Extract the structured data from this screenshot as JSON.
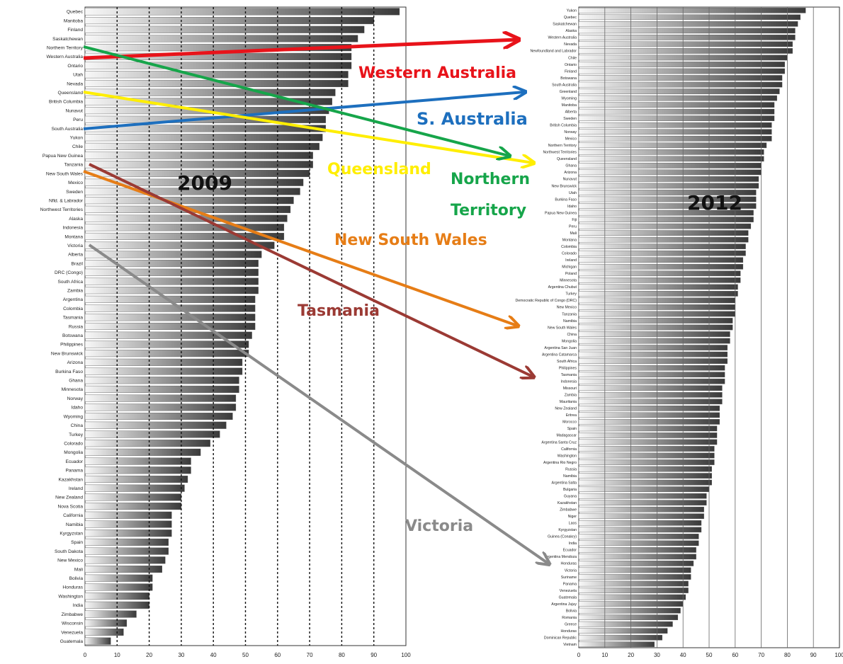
{
  "chart_data": [
    {
      "type": "bar",
      "orientation": "horizontal",
      "year_label": "2009",
      "xlim": [
        0,
        100
      ],
      "x_ticks": [
        0,
        10,
        20,
        30,
        40,
        50,
        60,
        70,
        80,
        90,
        100
      ],
      "grid": "vertical dotted",
      "categories": [
        "Quebec",
        "Manitoba",
        "Finland",
        "Saskatchewan",
        "Northern Territory",
        "Western Australia",
        "Ontario",
        "Utah",
        "Nevada",
        "Queensland",
        "British Columbia",
        "Nunavut",
        "Peru",
        "South Australia",
        "Yukon",
        "Chile",
        "Papua New Guinea",
        "Tanzania",
        "New South Wales",
        "Mexico",
        "Sweden",
        "Nfld. & Labrador",
        "Northwest Territories",
        "Alaska",
        "Indonesia",
        "Montana",
        "Victoria",
        "Alberta",
        "Brazil",
        "DRC (Congo)",
        "South Africa",
        "Zambia",
        "Argentina",
        "Colombia",
        "Tasmania",
        "Russia",
        "Botswana",
        "Philippines",
        "New Brunswick",
        "Arizona",
        "Burkina Faso",
        "Ghana",
        "Minnesota",
        "Norway",
        "Idaho",
        "Wyoming",
        "China",
        "Turkey",
        "Colorado",
        "Mongolia",
        "Ecuador",
        "Panama",
        "Kazakhstan",
        "Ireland",
        "New Zealand",
        "Nova Scotia",
        "California",
        "Namibia",
        "Kyrgyzstan",
        "Spain",
        "South Dakota",
        "New Mexico",
        "Mali",
        "Bolivia",
        "Honduras",
        "Washington",
        "India",
        "Zimbabwe",
        "Wisconsin",
        "Venezuela",
        "Guatemala"
      ],
      "values": [
        98,
        90,
        87,
        85,
        83,
        83,
        83,
        82,
        82,
        78,
        77,
        76,
        75,
        75,
        74,
        73,
        71,
        71,
        70,
        68,
        67,
        65,
        64,
        63,
        62,
        62,
        59,
        55,
        54,
        54,
        54,
        54,
        53,
        53,
        53,
        53,
        52,
        51,
        51,
        49,
        49,
        48,
        48,
        47,
        47,
        46,
        44,
        42,
        39,
        36,
        33,
        33,
        32,
        31,
        30,
        30,
        27,
        27,
        27,
        26,
        26,
        25,
        24,
        21,
        21,
        20,
        20,
        16,
        13,
        12,
        8
      ]
    },
    {
      "type": "bar",
      "orientation": "horizontal",
      "year_label": "2012",
      "xlim": [
        0,
        100
      ],
      "x_ticks": [
        0,
        10,
        20,
        30,
        40,
        50,
        60,
        70,
        80,
        90,
        100
      ],
      "grid": "vertical solid",
      "categories": [
        "Yukon",
        "Quebec",
        "Saskatchewan",
        "Alaska",
        "Western Australia",
        "Nevada",
        "Newfoundland and Labrador",
        "Chile",
        "Ontario",
        "Finland",
        "Botswana",
        "South Australia",
        "Greenland",
        "Wyoming",
        "Manitoba",
        "Alberta",
        "Sweden",
        "British Columbia",
        "Norway",
        "Mexico",
        "Northern Territory",
        "Northwest Territories",
        "Queensland",
        "Ghana",
        "Arizona",
        "Nunavut",
        "New Brunswick",
        "Utah",
        "Burkina Faso",
        "Idaho",
        "Papua New Guinea",
        "Fiji",
        "Peru",
        "Mali",
        "Montana",
        "Colombia",
        "Colorado",
        "Ireland",
        "Michigan",
        "Poland",
        "Minnesota",
        "Argentina Chubut",
        "Turkey",
        "Democratic Republic of Congo (DRC)",
        "New Mexico",
        "Tanzania",
        "Namibia",
        "New South Wales",
        "China",
        "Mongolia",
        "Argentina San Juan",
        "Argentina Catamarca",
        "South Africa",
        "Philippines",
        "Tasmania",
        "Indonesia",
        "Missouri",
        "Zambia",
        "Mauritania",
        "New Zealand",
        "Eritrea",
        "Morocco",
        "Spain",
        "Madagascar",
        "Argentina Santa Cruz",
        "California",
        "Washington",
        "Argentina Rio Negro",
        "Russia",
        "Namibia",
        "Argentina Salta",
        "Bulgaria",
        "Guyana",
        "Kazakhstan",
        "Zimbabwe",
        "Niger",
        "Laos",
        "Kyrgyzstan",
        "Guinea (Conakry)",
        "India",
        "Ecuador",
        "Argentina Mendoza",
        "Honduras",
        "Victoria",
        "Suriname",
        "Panama",
        "Venezuela",
        "Guatemala",
        "Argentina Jujuy",
        "Bolivia",
        "Romania",
        "Greece",
        "Honduras",
        "Dominican Republic",
        "Vietnam"
      ],
      "values": [
        87,
        85,
        84,
        83,
        83,
        82,
        82,
        80,
        79,
        79,
        78,
        78,
        77,
        76,
        75,
        75,
        75,
        74,
        74,
        74,
        72,
        71,
        71,
        70,
        70,
        69,
        69,
        68,
        68,
        68,
        67,
        67,
        66,
        65,
        65,
        64,
        64,
        63,
        63,
        62,
        62,
        61,
        61,
        60,
        60,
        60,
        59,
        59,
        58,
        58,
        57,
        57,
        57,
        56,
        56,
        56,
        55,
        55,
        55,
        54,
        54,
        54,
        53,
        53,
        53,
        52,
        52,
        52,
        51,
        51,
        51,
        50,
        49,
        49,
        48,
        48,
        47,
        47,
        46,
        46,
        45,
        45,
        44,
        43,
        43,
        42,
        42,
        41,
        40,
        39,
        38,
        36,
        34,
        32,
        29
      ]
    }
  ],
  "annotations": [
    {
      "label": "Western Australia",
      "color": "#e8131a"
    },
    {
      "label": "S. Australia",
      "color": "#1d6fbe"
    },
    {
      "label": "Queensland",
      "color": "#ffee00"
    },
    {
      "label": "Northern",
      "color": "#16a54a"
    },
    {
      "label": "Territory",
      "color": "#16a54a"
    },
    {
      "label": "New South Wales",
      "color": "#e67d16"
    },
    {
      "label": "Tasmania",
      "color": "#9b3a34"
    },
    {
      "label": "Victoria",
      "color": "#8a8a8a"
    }
  ]
}
